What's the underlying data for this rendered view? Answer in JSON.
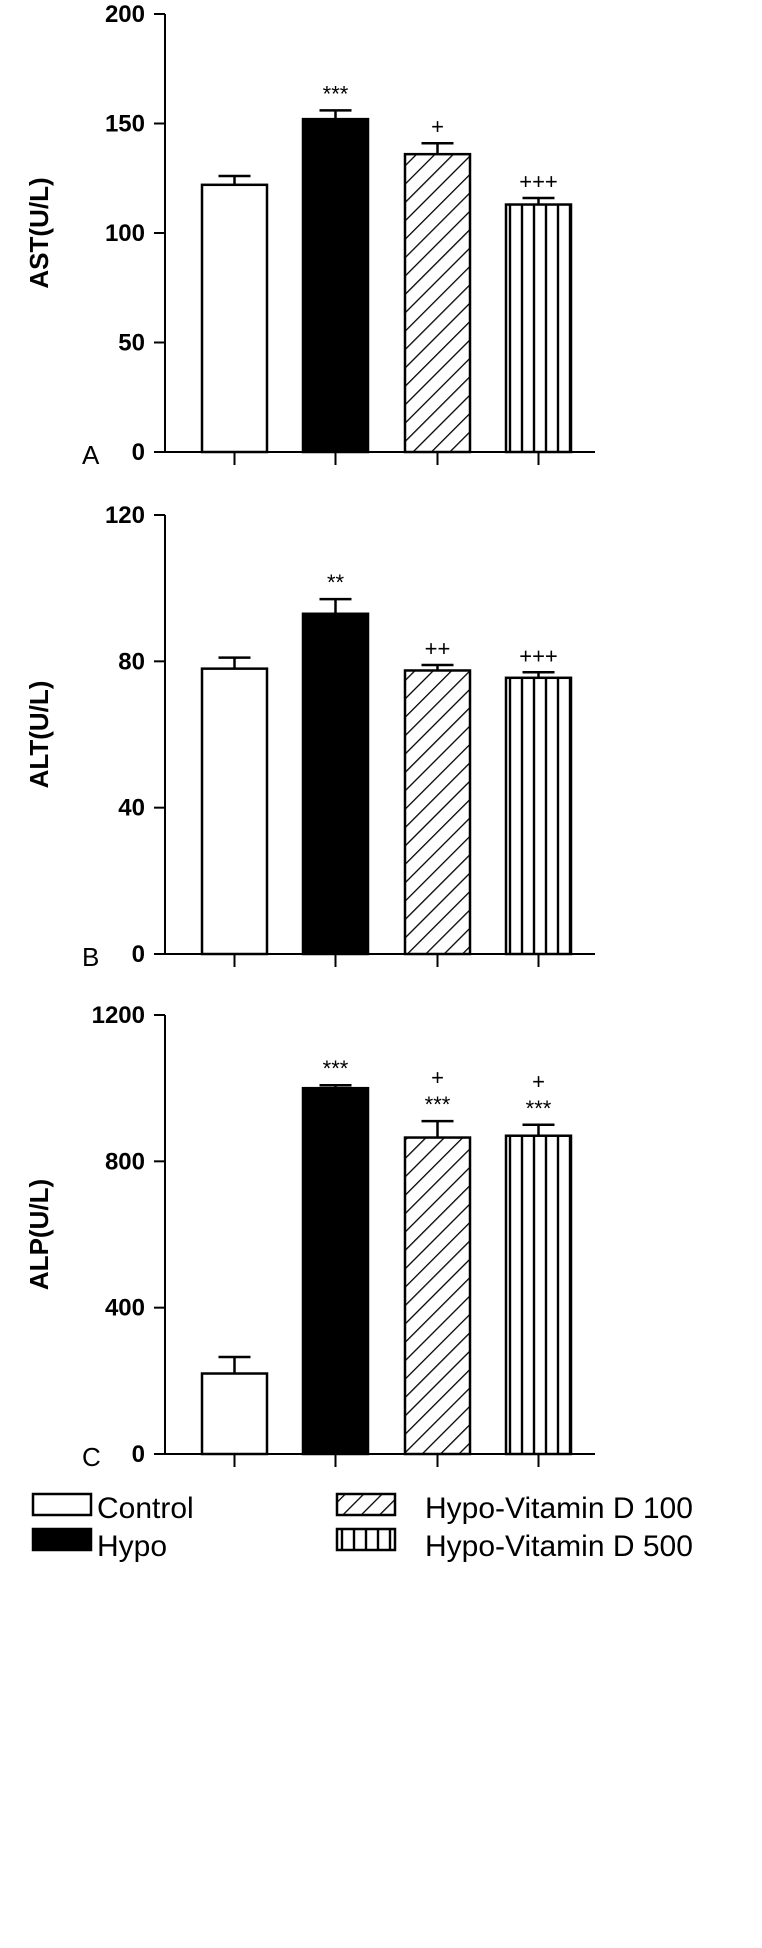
{
  "chart_data": [
    {
      "type": "bar",
      "panel_letter": "A",
      "ylabel": "AST(U/L)",
      "ylim": [
        0,
        200
      ],
      "yticks": [
        "0",
        "50",
        "100",
        "150",
        "200"
      ],
      "categories": [
        "Control",
        "Hypo",
        "Hypo-Vitamin D 100",
        "Hypo-Vitamin D 500"
      ],
      "values": [
        122,
        152,
        136,
        113
      ],
      "errors": [
        4,
        4,
        5,
        3
      ],
      "significance": [
        [],
        [
          "***"
        ],
        [
          "+"
        ],
        [
          "+++"
        ]
      ]
    },
    {
      "type": "bar",
      "panel_letter": "B",
      "ylabel": "ALT(U/L)",
      "ylim": [
        0,
        120
      ],
      "yticks": [
        "0",
        "40",
        "80",
        "120"
      ],
      "categories": [
        "Control",
        "Hypo",
        "Hypo-Vitamin D 100",
        "Hypo-Vitamin D 500"
      ],
      "values": [
        78,
        93,
        77.5,
        75.5
      ],
      "errors": [
        3,
        4,
        1.5,
        1.5
      ],
      "significance": [
        [],
        [
          "**"
        ],
        [
          "++"
        ],
        [
          "+++"
        ]
      ]
    },
    {
      "type": "bar",
      "panel_letter": "C",
      "ylabel": "ALP(U/L)",
      "ylim": [
        0,
        1200
      ],
      "yticks": [
        "0",
        "400",
        "800",
        "1200"
      ],
      "categories": [
        "Control",
        "Hypo",
        "Hypo-Vitamin D 100",
        "Hypo-Vitamin D 500"
      ],
      "values": [
        220,
        1000,
        865,
        870
      ],
      "errors": [
        45,
        8,
        45,
        30
      ],
      "significance": [
        [],
        [
          "***"
        ],
        [
          "***",
          "+"
        ],
        [
          "***",
          "+"
        ]
      ]
    }
  ],
  "legend": [
    {
      "label": "Control",
      "fill": "white"
    },
    {
      "label": "Hypo",
      "fill": "black"
    },
    {
      "label": "Hypo-Vitamin D 100",
      "fill": "diagonal-hatch"
    },
    {
      "label": "Hypo-Vitamin D 500",
      "fill": "vertical-hatch"
    }
  ],
  "colors": {
    "stroke": "#000000",
    "background": "#ffffff"
  }
}
